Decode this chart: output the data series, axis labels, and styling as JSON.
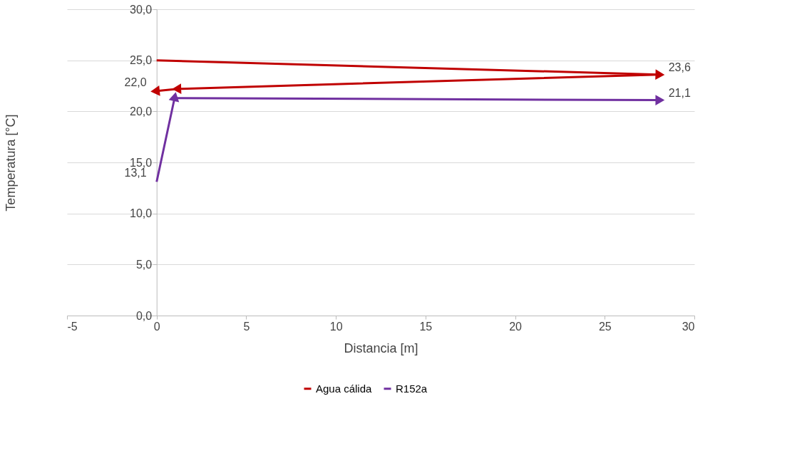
{
  "chart_data": {
    "type": "line",
    "xlabel": "Distancia [m]",
    "ylabel": "Temperatura [°C]",
    "xlim": [
      -5,
      30
    ],
    "xticks": [
      -5,
      0,
      5,
      10,
      15,
      20,
      25,
      30
    ],
    "ylim": [
      0,
      30
    ],
    "yticks": [
      {
        "value": 0,
        "label": "0,0"
      },
      {
        "value": 5,
        "label": "5,0"
      },
      {
        "value": 10,
        "label": "10,0"
      },
      {
        "value": 15,
        "label": "15,0"
      },
      {
        "value": 20,
        "label": "20,0"
      },
      {
        "value": 25,
        "label": "25,0"
      },
      {
        "value": 30,
        "label": "30,0"
      }
    ],
    "grid": "y",
    "legend": "bottom",
    "marker": "triangle",
    "line_style": "solid",
    "series": [
      {
        "name": "Agua cálida",
        "color": "#c00000",
        "x": [
          0,
          28,
          1.2,
          0
        ],
        "values": [
          25,
          23.6,
          22.2,
          22.0
        ],
        "value_labels": [
          null,
          "23,6",
          null,
          "22,0"
        ]
      },
      {
        "name": "R152a",
        "color": "#7030a0",
        "x": [
          0,
          1,
          28
        ],
        "values": [
          13.1,
          21.3,
          21.1
        ],
        "value_labels": [
          "13,1",
          null,
          "21,1"
        ]
      }
    ]
  }
}
